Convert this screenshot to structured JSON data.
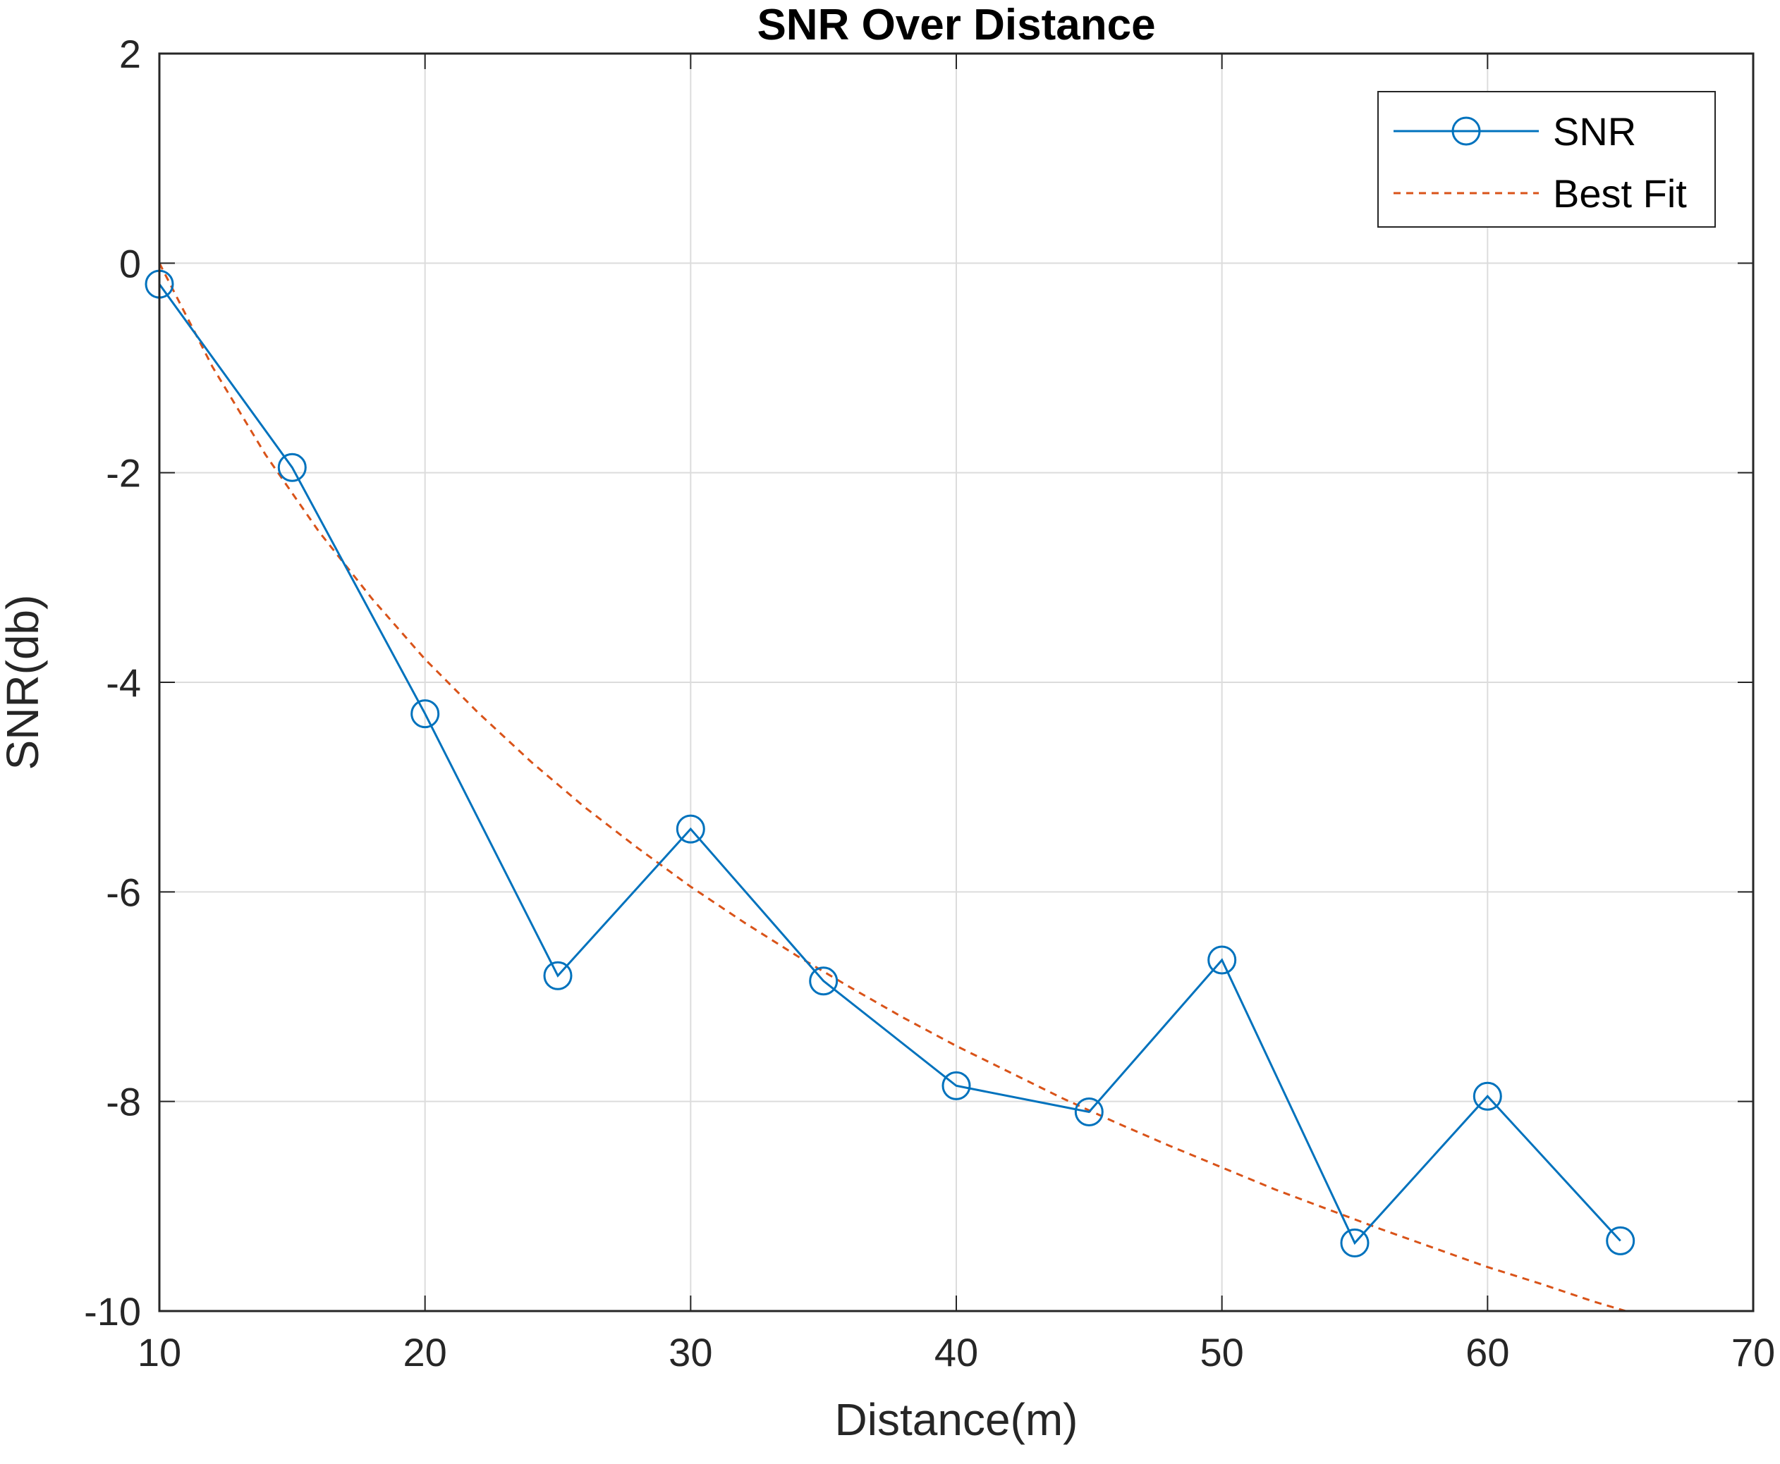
{
  "chart_data": {
    "type": "line",
    "title": "SNR Over Distance",
    "xlabel": "Distance(m)",
    "ylabel": "SNR(db)",
    "xlim": [
      10,
      70
    ],
    "ylim": [
      -10,
      2
    ],
    "xticks": [
      "10",
      "20",
      "30",
      "40",
      "50",
      "60",
      "70"
    ],
    "yticks": [
      "2",
      "0",
      "-2",
      "-4",
      "-6",
      "-8",
      "-10"
    ],
    "grid": true,
    "legend_position": "top-right",
    "series": [
      {
        "name": "SNR",
        "style": "solid line with circle markers",
        "color": "#0072BD",
        "x": [
          10,
          15,
          20,
          25,
          30,
          35,
          40,
          45,
          50,
          55,
          60,
          65
        ],
        "y": [
          -0.2,
          -1.95,
          -4.3,
          -6.8,
          -5.4,
          -6.85,
          -7.85,
          -8.1,
          -6.65,
          -9.35,
          -7.95,
          -9.33
        ]
      },
      {
        "name": "Best Fit",
        "style": "dashed line",
        "color": "#D95319",
        "x": [
          10,
          12,
          14,
          16,
          18,
          20,
          22,
          24,
          26,
          28,
          30,
          32,
          34,
          36,
          38,
          40,
          42,
          44,
          46,
          48,
          50,
          52,
          54,
          56,
          58,
          60,
          62,
          64,
          66,
          68,
          70
        ],
        "y": [
          0.0,
          -0.99,
          -1.83,
          -2.56,
          -3.2,
          -3.78,
          -4.29,
          -4.76,
          -5.19,
          -5.58,
          -5.95,
          -6.29,
          -6.61,
          -6.91,
          -7.2,
          -7.47,
          -7.72,
          -7.97,
          -8.2,
          -8.42,
          -8.63,
          -8.84,
          -9.03,
          -9.22,
          -9.4,
          -9.58,
          -9.74,
          -9.91,
          -10.06,
          -10.22,
          -10.37
        ]
      }
    ]
  }
}
